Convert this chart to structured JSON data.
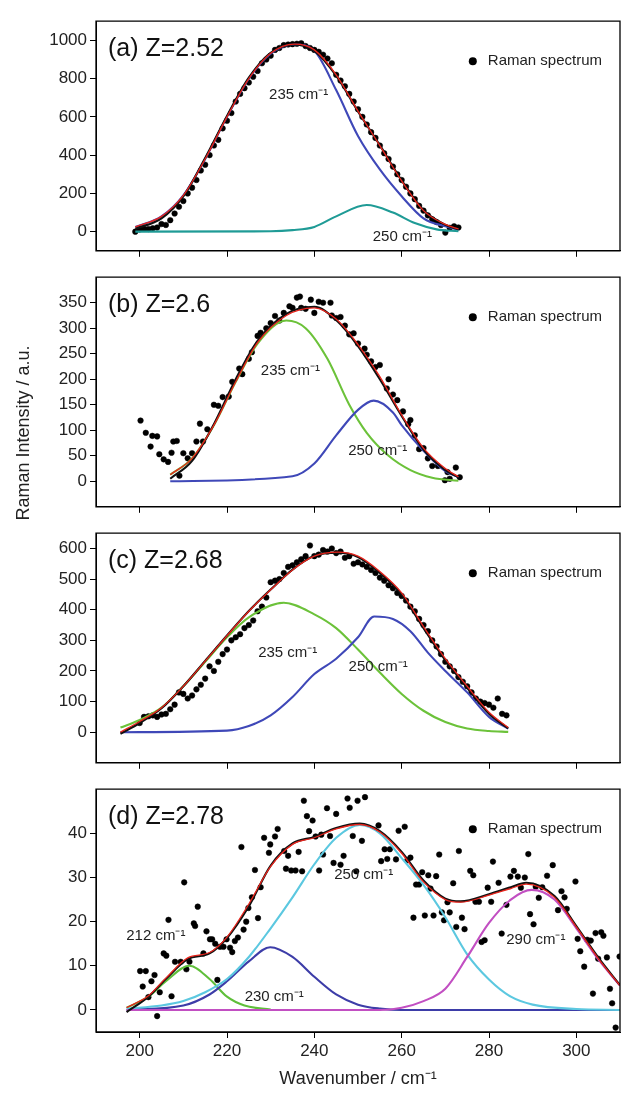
{
  "chart_data": [
    {
      "type": "line",
      "title": "(a) Z=2.52",
      "xlim": [
        190,
        310
      ],
      "xticks": [
        200,
        220,
        240,
        260,
        280,
        300
      ],
      "ylim": [
        -100,
        1100
      ],
      "yticks": [
        0,
        200,
        400,
        600,
        800,
        1000
      ],
      "tick_labels": "y",
      "legend": "top right",
      "annotations": [
        "235 cm⁻¹",
        "250 cm⁻¹"
      ],
      "series": [
        {
          "type": "line",
          "marker": "none",
          "color": "#3f48b8",
          "x": [
            199,
            205,
            210,
            215,
            220,
            225,
            230,
            235.5,
            240,
            245,
            250,
            255,
            260,
            265,
            270,
            273
          ],
          "values": [
            25,
            80,
            190,
            380,
            600,
            800,
            930,
            978,
            945,
            740,
            500,
            325,
            185,
            70,
            28,
            12
          ]
        },
        {
          "type": "line",
          "marker": "none",
          "color": "#1f9b96",
          "x": [
            199,
            230,
            235,
            240,
            245,
            252,
            258,
            263,
            268,
            273
          ],
          "values": [
            0,
            2,
            8,
            25,
            80,
            139,
            100,
            45,
            12,
            2
          ]
        },
        {
          "type": "line",
          "marker": "none",
          "color": "#111111",
          "x": [
            199,
            205,
            210,
            215,
            220,
            225,
            230,
            235.5,
            240,
            245,
            250,
            255,
            260,
            265,
            270,
            273
          ],
          "values": [
            15,
            70,
            185,
            385,
            605,
            805,
            935,
            978,
            945,
            815,
            628,
            452,
            268,
            112,
            36,
            12
          ]
        },
        {
          "type": "line",
          "marker": "none",
          "color": "#e8241c",
          "x": [
            199,
            205,
            210,
            215,
            220,
            225,
            230,
            235.5,
            240,
            245,
            250,
            255,
            260,
            265,
            270,
            273
          ],
          "values": [
            25,
            80,
            190,
            380,
            600,
            800,
            932,
            980,
            950,
            820,
            630,
            450,
            265,
            110,
            38,
            14
          ]
        },
        {
          "type": "scatter",
          "name": "Raman spectrum",
          "marker": "circle",
          "color": "#000000",
          "x": [
            199,
            200,
            201,
            202,
            203,
            204,
            205,
            206,
            207,
            208,
            209,
            210,
            211,
            212,
            213,
            214,
            215,
            216,
            217,
            218,
            219,
            220,
            221,
            222,
            223,
            224,
            225,
            226,
            227,
            228,
            229,
            230,
            231,
            232,
            233,
            234,
            235,
            236,
            237,
            238,
            239,
            240,
            241,
            242,
            243,
            244,
            245,
            246,
            247,
            248,
            249,
            250,
            251,
            252,
            253,
            254,
            255,
            256,
            257,
            258,
            259,
            260,
            261,
            262,
            263,
            264,
            265,
            266,
            267,
            268,
            269,
            270,
            271,
            272,
            273
          ],
          "values": [
            0,
            12,
            15,
            14,
            18,
            22,
            40,
            35,
            60,
            95,
            130,
            160,
            200,
            230,
            270,
            320,
            350,
            400,
            450,
            480,
            540,
            580,
            620,
            680,
            720,
            750,
            780,
            810,
            840,
            880,
            900,
            920,
            950,
            960,
            975,
            978,
            980,
            982,
            985,
            970,
            960,
            950,
            940,
            925,
            905,
            880,
            820,
            790,
            760,
            720,
            680,
            640,
            600,
            560,
            520,
            490,
            450,
            410,
            380,
            340,
            300,
            270,
            235,
            200,
            170,
            135,
            110,
            85,
            65,
            50,
            35,
            -5,
            20,
            28,
            22
          ]
        }
      ]
    },
    {
      "type": "line",
      "title": "(b) Z=2.6",
      "ylabel": "Raman Intensity / a.u.",
      "xlim": [
        190,
        310
      ],
      "xticks": [
        200,
        220,
        240,
        260,
        280,
        300
      ],
      "ylim": [
        -50,
        400
      ],
      "yticks": [
        0,
        50,
        100,
        150,
        200,
        250,
        300,
        350
      ],
      "tick_labels": "y",
      "legend": "top right",
      "annotations": [
        "235 cm⁻¹",
        "250 cm⁻¹"
      ],
      "series": [
        {
          "type": "line",
          "marker": "none",
          "color": "#6cc23a",
          "x": [
            207,
            212,
            217,
            222,
            227,
            233.6,
            238,
            243,
            248,
            252,
            257,
            262,
            267,
            273
          ],
          "values": [
            13,
            45,
            110,
            195,
            270,
            315,
            300,
            240,
            150,
            95,
            50,
            22,
            7,
            1
          ]
        },
        {
          "type": "line",
          "marker": "none",
          "color": "#3f48b8",
          "x": [
            207,
            235,
            240,
            245,
            250,
            253.6,
            258,
            260,
            265,
            270,
            273
          ],
          "values": [
            0,
            10,
            35,
            90,
            140,
            158,
            135,
            110,
            60,
            20,
            8
          ]
        },
        {
          "type": "line",
          "marker": "none",
          "color": "#111111",
          "x": [
            207,
            212,
            217,
            222,
            227,
            233.6,
            240,
            245,
            250,
            255,
            260,
            265,
            270,
            273
          ],
          "values": [
            5,
            40,
            112,
            200,
            275,
            328,
            342,
            316,
            265,
            200,
            128,
            62,
            22,
            8
          ]
        },
        {
          "type": "line",
          "marker": "none",
          "color": "#e8241c",
          "x": [
            207,
            212,
            217,
            222,
            227,
            233.6,
            240,
            245,
            250,
            255,
            260,
            265,
            270,
            273
          ],
          "values": [
            13,
            45,
            110,
            195,
            272,
            325,
            340,
            318,
            268,
            205,
            130,
            65,
            25,
            9
          ]
        },
        {
          "type": "scatter",
          "name": "Raman spectrum",
          "marker": "circle",
          "color": "#000000",
          "x": [
            200.2,
            201.4,
            202.5,
            202.9,
            204,
            204.5,
            205.5,
            206.5,
            207.3,
            207.7,
            208.5,
            209.1,
            210,
            211,
            212,
            213,
            213.8,
            214.5,
            215.5,
            217,
            218,
            219,
            220.4,
            221.2,
            222.8,
            223.5,
            225,
            225.7,
            227,
            227.7,
            229,
            230,
            231,
            232,
            233,
            234.3,
            235,
            236,
            236.7,
            237,
            238,
            239.2,
            240,
            241,
            242,
            243.7,
            244,
            245,
            246,
            247,
            248,
            249,
            250,
            251.5,
            252,
            253,
            254,
            255,
            256.6,
            257,
            258,
            259,
            260.3,
            261.5,
            262,
            263,
            264,
            265,
            266,
            267,
            268.3,
            269.9,
            270.5,
            271,
            272.4,
            273.3
          ],
          "values": [
            119,
            95,
            68,
            89,
            88,
            53,
            43,
            38,
            56,
            78,
            79,
            11,
            55,
            45,
            55,
            78,
            113,
            78,
            102,
            150,
            148,
            165,
            166,
            195,
            221,
            210,
            240,
            253,
            285,
            291,
            300,
            310,
            324,
            315,
            330,
            343,
            340,
            360,
            362,
            340,
            338,
            356,
            330,
            352,
            350,
            350,
            325,
            320,
            322,
            305,
            288,
            290,
            270,
            260,
            248,
            235,
            224,
            228,
            182,
            200,
            170,
            159,
            137,
            112,
            120,
            90,
            63,
            65,
            45,
            30,
            30,
            2,
            18,
            5,
            27,
            8
          ]
        }
      ]
    },
    {
      "type": "line",
      "title": "(c) Z=2.68",
      "xlim": [
        190,
        310
      ],
      "xticks": [
        200,
        220,
        240,
        260,
        280,
        300
      ],
      "ylim": [
        -100,
        650
      ],
      "yticks": [
        0,
        100,
        200,
        300,
        400,
        500,
        600
      ],
      "tick_labels": "y",
      "legend": "top right",
      "annotations": [
        "235 cm⁻¹",
        "250 cm⁻¹"
      ],
      "series": [
        {
          "type": "line",
          "marker": "none",
          "color": "#6cc23a",
          "x": [
            195.6,
            200,
            205,
            210,
            215,
            220,
            225,
            233,
            240,
            245,
            250,
            255,
            260,
            265,
            270,
            275,
            280,
            284.4
          ],
          "values": [
            15,
            40,
            80,
            150,
            230,
            310,
            375,
            423,
            385,
            340,
            270,
            195,
            125,
            70,
            33,
            12,
            4,
            1
          ]
        },
        {
          "type": "line",
          "marker": "none",
          "color": "#3f48b8",
          "x": [
            195.6,
            220,
            225,
            230,
            235,
            240,
            245,
            250,
            253.7,
            258,
            262,
            266,
            270,
            275,
            280,
            284.4
          ],
          "values": [
            0,
            5,
            20,
            55,
            115,
            190,
            240,
            310,
            378,
            370,
            330,
            260,
            200,
            130,
            50,
            12
          ]
        },
        {
          "type": "line",
          "marker": "none",
          "color": "#111111",
          "x": [
            195.6,
            200,
            205,
            210,
            215,
            220,
            225,
            230,
            235,
            240,
            245.4,
            250,
            255,
            260,
            265,
            270,
            275,
            280,
            284.4
          ],
          "values": [
            -5,
            30,
            78,
            150,
            233,
            316,
            396,
            466,
            531,
            576,
            586,
            572,
            520,
            450,
            340,
            235,
            145,
            60,
            12
          ]
        },
        {
          "type": "line",
          "marker": "none",
          "color": "#e8241c",
          "x": [
            195.6,
            200,
            205,
            210,
            215,
            220,
            225,
            230,
            235,
            240,
            245.4,
            250,
            255,
            260,
            265,
            270,
            275,
            280,
            284.4
          ],
          "values": [
            0,
            35,
            80,
            150,
            232,
            315,
            395,
            465,
            530,
            575,
            588,
            575,
            525,
            455,
            345,
            240,
            150,
            65,
            15
          ]
        },
        {
          "type": "scatter",
          "name": "Raman spectrum",
          "marker": "circle",
          "color": "#000000",
          "x": [
            200,
            201,
            202,
            203,
            204,
            205,
            206,
            207,
            208,
            209,
            210,
            211,
            212,
            213,
            214,
            215,
            216,
            217,
            218,
            219,
            220,
            221,
            222,
            223,
            224,
            225,
            226,
            227,
            228,
            229,
            230,
            231,
            232,
            233,
            234,
            235,
            236,
            237,
            238,
            239,
            240,
            241,
            242,
            243,
            244,
            245,
            246,
            247,
            248,
            249,
            250,
            251,
            252,
            253,
            254,
            255,
            256,
            257,
            258,
            259,
            260,
            261,
            262,
            263,
            264,
            265,
            266,
            267,
            268,
            269,
            270,
            271,
            272,
            273,
            274,
            275,
            276,
            277,
            278,
            279,
            280,
            281,
            282,
            283,
            284
          ],
          "values": [
            30,
            50,
            52,
            55,
            50,
            58,
            60,
            75,
            90,
            130,
            125,
            110,
            120,
            140,
            155,
            175,
            215,
            200,
            230,
            255,
            270,
            300,
            310,
            320,
            340,
            350,
            365,
            395,
            410,
            440,
            490,
            495,
            500,
            520,
            540,
            545,
            555,
            565,
            575,
            610,
            575,
            580,
            595,
            590,
            600,
            585,
            590,
            570,
            575,
            550,
            555,
            548,
            540,
            530,
            520,
            505,
            495,
            480,
            470,
            455,
            445,
            430,
            410,
            395,
            370,
            350,
            330,
            300,
            280,
            255,
            230,
            215,
            200,
            180,
            165,
            150,
            130,
            110,
            100,
            95,
            90,
            80,
            110,
            60,
            55
          ]
        }
      ]
    },
    {
      "type": "line",
      "title": "(d) Z=2.78",
      "xlabel": "Wavenumber / cm⁻¹",
      "xlim": [
        190,
        310
      ],
      "xticks": [
        200,
        220,
        240,
        260,
        280,
        300
      ],
      "ylim": [
        -5,
        50
      ],
      "yticks": [
        0,
        10,
        20,
        30,
        40
      ],
      "legend": "top right",
      "annotations": [
        "212 cm⁻¹",
        "230 cm⁻¹",
        "250 cm⁻¹",
        "290 cm⁻¹"
      ],
      "series": [
        {
          "type": "line",
          "marker": "none",
          "color": "#5fbf3a",
          "x": [
            197,
            202,
            206,
            211.4,
            216,
            220,
            224,
            230
          ],
          "values": [
            0.5,
            3,
            6.5,
            10,
            7,
            3,
            1,
            0.1
          ]
        },
        {
          "type": "line",
          "marker": "none",
          "color": "#3d3da8",
          "x": [
            197,
            210,
            216,
            220,
            225,
            229.9,
            235,
            240,
            245,
            250,
            255,
            260,
            310
          ],
          "values": [
            0,
            1,
            3.5,
            6.5,
            11,
            14.2,
            12,
            7.5,
            3.5,
            1.2,
            0.3,
            0,
            0
          ]
        },
        {
          "type": "line",
          "marker": "none",
          "color": "#5cc8e0",
          "x": [
            197,
            205,
            210,
            215,
            220,
            225,
            230,
            235,
            240,
            245,
            250.4,
            255,
            260,
            265,
            270,
            275,
            280,
            285,
            290,
            300,
            310
          ],
          "values": [
            0.3,
            1,
            2,
            4,
            7,
            12,
            18.5,
            25.5,
            33,
            39,
            41.9,
            40,
            34.4,
            28.3,
            21,
            12.6,
            6.9,
            3,
            1.2,
            0.2,
            0
          ]
        },
        {
          "type": "line",
          "marker": "none",
          "color": "#c24fc2",
          "x": [
            197,
            255,
            260,
            265,
            270,
            275,
            280,
            285,
            289.8,
            295,
            300,
            305,
            310
          ],
          "values": [
            0,
            0,
            0.5,
            2,
            4.8,
            12,
            19.7,
            25,
            27.2,
            25,
            18.5,
            11.5,
            5.5
          ]
        },
        {
          "type": "line",
          "marker": "none",
          "color": "#111111",
          "x": [
            197,
            202,
            206,
            211,
            216,
            220,
            225,
            230,
            235,
            240,
            245,
            250.4,
            255,
            260,
            265,
            270,
            273.5,
            280,
            285,
            288.5,
            295,
            300,
            305,
            310
          ],
          "values": [
            -0.5,
            3,
            7,
            11.5,
            12.8,
            16.3,
            23.5,
            32.7,
            37.7,
            39.2,
            41.2,
            42.2,
            40.5,
            35.8,
            29.3,
            25.2,
            24.6,
            26.2,
            27.8,
            28.8,
            25.8,
            19,
            11.9,
            5.6
          ]
        },
        {
          "type": "line",
          "marker": "none",
          "color": "#e8241c",
          "x": [
            197,
            202,
            206,
            211,
            216,
            220,
            225,
            230,
            235,
            240,
            245,
            250.4,
            255,
            260,
            265,
            270,
            273.5,
            280,
            285,
            288.5,
            295,
            300,
            305,
            310
          ],
          "values": [
            0.5,
            3.2,
            7.2,
            11.8,
            13,
            16.5,
            24,
            32.5,
            37.5,
            39,
            41,
            42,
            40.3,
            35.5,
            29,
            25,
            24.4,
            26,
            27.5,
            28.5,
            25.5,
            18.8,
            11.7,
            5.5
          ]
        },
        {
          "type": "scatter",
          "name": "Raman spectrum",
          "marker": "circle",
          "color": "#000000",
          "x": [
            200.1,
            201.4,
            200.7,
            202,
            202.7,
            203.4,
            204,
            204.6,
            205.5,
            206.1,
            206.6,
            207.3,
            208.1,
            209.4,
            210.2,
            210.7,
            211.4,
            212.4,
            212.7,
            213.3,
            214.6,
            215.3,
            216.1,
            216.6,
            217.3,
            217.8,
            218.4,
            219.2,
            219.9,
            220.7,
            221.2,
            221.8,
            222.5,
            223.3,
            223.8,
            224.4,
            224.9,
            225.7,
            226.4,
            227.1,
            227.7,
            228.5,
            229.6,
            229.9,
            231,
            231.6,
            233.1,
            233.5,
            234,
            234.7,
            235.7,
            236.4,
            237.2,
            237.6,
            238.3,
            238.8,
            239.6,
            240.3,
            241.1,
            242,
            241.6,
            242.9,
            243.6,
            245,
            244.4,
            246,
            246.7,
            247.6,
            248.1,
            248.8,
            249.6,
            249.9,
            251.6,
            250.9,
            254.7,
            256.1,
            257.3,
            255.3,
            256.7,
            258.7,
            259.3,
            260.7,
            261.3,
            262,
            262.7,
            263.3,
            264,
            264.7,
            265.3,
            266.1,
            266.6,
            267.3,
            267.9,
            268.6,
            269.2,
            269.7,
            270.5,
            271,
            271.8,
            272.5,
            273.1,
            273.8,
            274.4,
            275.7,
            276.4,
            276.9,
            277.7,
            278.3,
            279,
            279.7,
            280.5,
            280.9,
            282.2,
            282.9,
            284,
            284.9,
            285.7,
            286.6,
            287.3,
            288.2,
            289,
            289.4,
            290.2,
            290.7,
            291.4,
            292.2,
            293.3,
            294.6,
            295.8,
            296.6,
            297.3,
            297.8,
            299.8,
            300.3,
            300.9,
            301.8,
            302.5,
            303.3,
            303.8,
            304.4,
            305,
            305.7,
            306.2,
            307,
            307.7,
            308.2,
            309,
            309.9
          ],
          "values": [
            8.8,
            8.8,
            5.3,
            2.9,
            6.5,
            7.9,
            -1.4,
            4,
            12.8,
            12.3,
            20.4,
            3.1,
            10.9,
            10.9,
            28.9,
            9.2,
            10.9,
            19.6,
            19,
            23.4,
            12.8,
            17.8,
            16,
            16,
            15,
            6.8,
            14.3,
            14.3,
            16,
            14.1,
            13.1,
            15.6,
            16.4,
            36.9,
            18.2,
            20,
            23.1,
            25.5,
            31.7,
            20.8,
            27.8,
            39,
            35.6,
            37.5,
            39.3,
            41,
            36,
            32,
            34.9,
            31.6,
            31.6,
            35.8,
            31.4,
            47.4,
            43.9,
            40.5,
            42.9,
            39.3,
            31.6,
            35.2,
            39.7,
            45.7,
            39.4,
            44.4,
            33.3,
            32.9,
            34.9,
            47.9,
            45.8,
            39.4,
            31.4,
            47.4,
            48.2,
            38.3,
            41.8,
            36.4,
            36.4,
            33.7,
            34.2,
            34.1,
            40.6,
            41.5,
            33.9,
            34.5,
            20.9,
            28.4,
            28.4,
            31.2,
            21.4,
            30.5,
            27.5,
            21.4,
            30.3,
            35.2,
            22.1,
            20.3,
            24.4,
            22.1,
            28.7,
            18.8,
            36,
            20.9,
            18.3,
            31.5,
            30.5,
            24.5,
            24.5,
            15.4,
            15.8,
            27.7,
            24.5,
            33.6,
            28.8,
            17.3,
            23.8,
            30.2,
            31.5,
            30.2,
            27.7,
            30,
            35.3,
            21.7,
            19.4,
            27.9,
            25.4,
            27.8,
            30.4,
            32.8,
            22.6,
            26.9,
            25.5,
            22.9,
            29.1,
            16.1,
            13.3,
            9.8,
            15.9,
            15.7,
            3.7,
            17.4,
            11.6,
            17.6,
            16.8,
            11.9,
            4.8,
            1.5,
            -4,
            12.1
          ]
        }
      ]
    }
  ]
}
